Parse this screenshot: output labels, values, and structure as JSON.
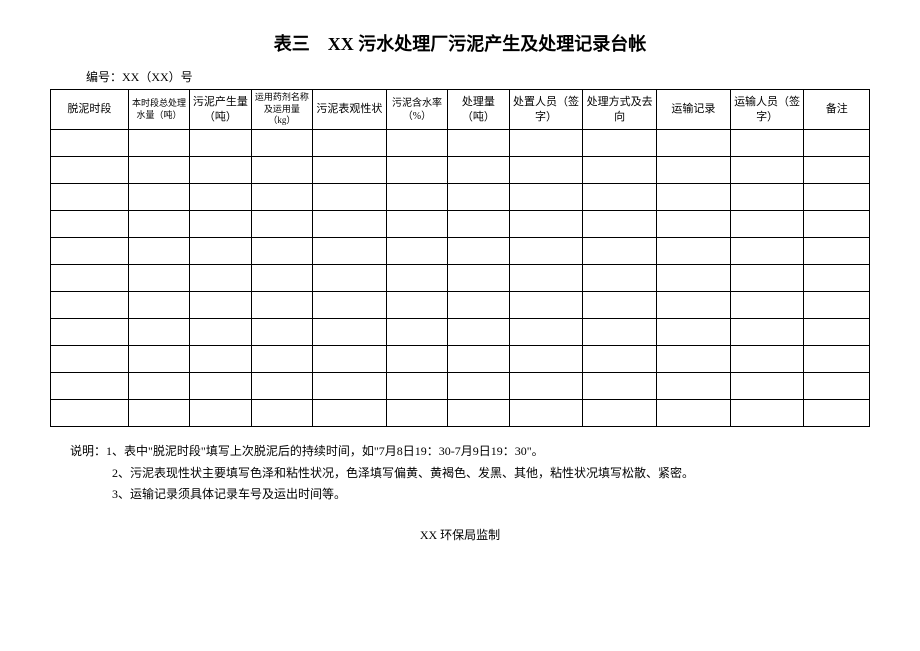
{
  "title": "表三　XX 污水处理厂污泥产生及处理记录台帐",
  "docNumber": "编号：XX（XX）号",
  "columns": [
    "脱泥时段",
    "本时段总处理水量（吨）",
    "污泥产生量（吨）",
    "运用药剂名称及运用量（kg）",
    "污泥表观性状",
    "污泥含水率（%）",
    "处理量（吨）",
    "处置人员（签字）",
    "处理方式及去向",
    "运输记录",
    "运输人员（签字）",
    "备注"
  ],
  "rowCount": 11,
  "notes": {
    "prefix": "说明：",
    "lines": [
      "1、表中\"脱泥时段\"填写上次脱泥后的持续时间，如\"7月8日19：30-7月9日19：30\"。",
      "2、污泥表现性状主要填写色泽和粘性状况，色泽填写偏黄、黄褐色、发黑、其他，粘性状况填写松散、紧密。",
      "3、运输记录须具体记录车号及运出时间等。"
    ]
  },
  "supervisor": "XX 环保局监制"
}
